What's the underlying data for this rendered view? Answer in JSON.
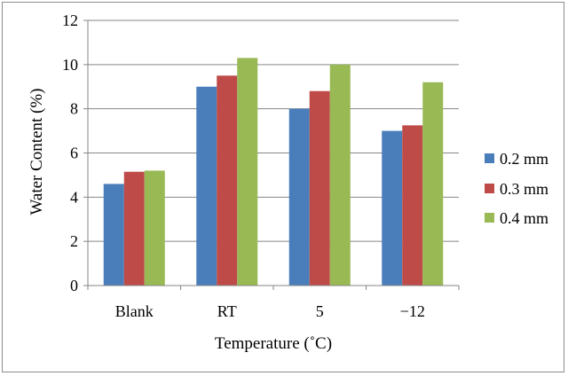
{
  "chart_data": {
    "type": "bar",
    "categories": [
      "Blank",
      "RT",
      "5",
      "−12"
    ],
    "series": [
      {
        "name": "0.2 mm",
        "color": "#4a7ebb",
        "values": [
          4.6,
          9.0,
          8.0,
          7.0
        ]
      },
      {
        "name": "0.3 mm",
        "color": "#be4b48",
        "values": [
          5.15,
          9.5,
          8.8,
          7.25
        ]
      },
      {
        "name": "0.4 mm",
        "color": "#98b954",
        "values": [
          5.2,
          10.3,
          10.0,
          9.2
        ]
      }
    ],
    "xlabel": "Temperature (˚C)",
    "ylabel": "Water Content (%)",
    "ylim": [
      0,
      12
    ],
    "yticks": [
      "0",
      "2",
      "4",
      "6",
      "8",
      "10",
      "12"
    ],
    "grid": true,
    "legend_position": "right"
  }
}
